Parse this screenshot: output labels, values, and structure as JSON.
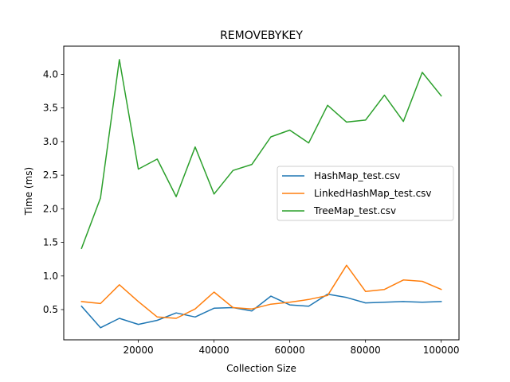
{
  "chart_data": {
    "type": "line",
    "title": "REMOVEBYKEY",
    "xlabel": "Collection Size",
    "ylabel": "Time (ms)",
    "xlim": [
      300,
      104700
    ],
    "ylim": [
      0.05,
      4.42
    ],
    "xticks": [
      20000,
      40000,
      60000,
      80000,
      100000
    ],
    "xtick_labels": [
      "20000",
      "40000",
      "60000",
      "80000",
      "100000"
    ],
    "yticks": [
      0.5,
      1.0,
      1.5,
      2.0,
      2.5,
      3.0,
      3.5,
      4.0
    ],
    "ytick_labels": [
      "0.5",
      "1.0",
      "1.5",
      "2.0",
      "2.5",
      "3.0",
      "3.5",
      "4.0"
    ],
    "legend_position": "center-right",
    "grid": false,
    "x": [
      5000,
      10000,
      15000,
      20000,
      25000,
      30000,
      35000,
      40000,
      45000,
      50000,
      55000,
      60000,
      65000,
      70000,
      75000,
      80000,
      85000,
      90000,
      95000,
      100000
    ],
    "series": [
      {
        "name": "HashMap_test.csv",
        "color": "#1f77b4",
        "values": [
          0.55,
          0.23,
          0.37,
          0.28,
          0.34,
          0.45,
          0.39,
          0.52,
          0.53,
          0.48,
          0.7,
          0.57,
          0.55,
          0.73,
          0.68,
          0.6,
          0.61,
          0.62,
          0.61,
          0.62
        ]
      },
      {
        "name": "LinkedHashMap_test.csv",
        "color": "#ff7f0e",
        "values": [
          0.62,
          0.59,
          0.87,
          0.62,
          0.39,
          0.37,
          0.51,
          0.76,
          0.53,
          0.51,
          0.58,
          0.61,
          0.65,
          0.71,
          1.16,
          0.77,
          0.8,
          0.94,
          0.92,
          0.8
        ]
      },
      {
        "name": "TreeMap_test.csv",
        "color": "#2ca02c",
        "values": [
          1.41,
          2.16,
          4.22,
          2.59,
          2.74,
          2.18,
          2.92,
          2.22,
          2.57,
          2.66,
          3.07,
          3.17,
          2.98,
          3.54,
          3.29,
          3.32,
          3.69,
          3.3,
          4.03,
          3.68
        ]
      }
    ]
  }
}
